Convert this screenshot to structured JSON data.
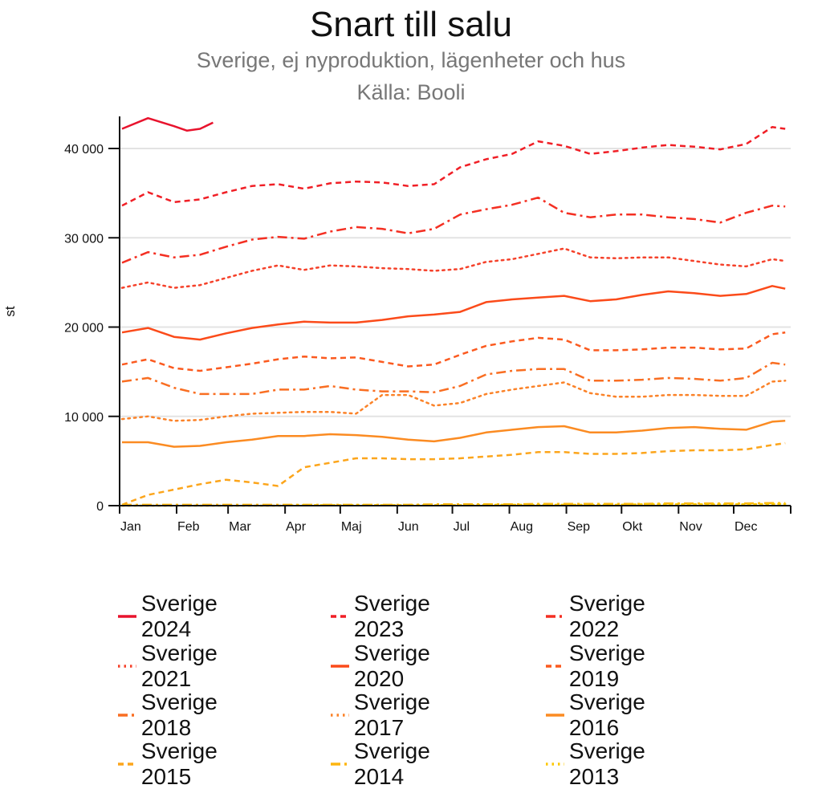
{
  "chart_data": {
    "type": "line",
    "title": "Snart till salu",
    "subtitle": "Sverige, ej nyproduktion, lägenheter och hus",
    "source": "Källa: Booli",
    "ylabel": "st",
    "xlabel": "",
    "ylim": [
      0,
      44000
    ],
    "yticks": [
      0,
      10000,
      20000,
      30000,
      40000
    ],
    "ytick_labels": [
      "0",
      "10 000",
      "20 000",
      "30 000",
      "40 000"
    ],
    "x_unit": "week",
    "xtick_labels": [
      "Jan",
      "Feb",
      "Mar",
      "Apr",
      "Maj",
      "Jun",
      "Jul",
      "Aug",
      "Sep",
      "Okt",
      "Nov",
      "Dec"
    ],
    "grid": "horizontal",
    "legend": "bottom",
    "x": [
      1,
      3,
      5,
      7,
      9,
      11,
      13,
      15,
      17,
      19,
      21,
      23,
      25,
      27,
      29,
      31,
      33,
      35,
      37,
      39,
      41,
      43,
      45,
      47,
      49,
      51,
      52
    ],
    "series": [
      {
        "name": "Sverige 2024",
        "color": "#e8132d",
        "style": "solid",
        "x": [
          1,
          3,
          5,
          6,
          7,
          8
        ],
        "values": [
          42200,
          43400,
          42500,
          42000,
          42200,
          42900
        ]
      },
      {
        "name": "Sverige 2023",
        "color": "#f01f26",
        "style": "dashed",
        "values": [
          33600,
          35100,
          34000,
          34300,
          35100,
          35800,
          36000,
          35500,
          36100,
          36300,
          36200,
          35800,
          36000,
          37900,
          38800,
          39400,
          40800,
          40300,
          39400,
          39700,
          40100,
          40400,
          40200,
          39900,
          40500,
          42400,
          42200
        ]
      },
      {
        "name": "Sverige 2022",
        "color": "#f42f22",
        "style": "dashdot",
        "values": [
          27200,
          28400,
          27800,
          28100,
          29000,
          29800,
          30100,
          29900,
          30700,
          31200,
          31000,
          30500,
          31000,
          32600,
          33200,
          33700,
          34500,
          32800,
          32300,
          32600,
          32600,
          32300,
          32100,
          31700,
          32800,
          33600,
          33500
        ]
      },
      {
        "name": "Sverige 2021",
        "color": "#f5412a",
        "style": "dotted",
        "values": [
          24400,
          25000,
          24400,
          24700,
          25500,
          26300,
          26900,
          26400,
          26900,
          26800,
          26600,
          26500,
          26300,
          26500,
          27300,
          27600,
          28200,
          28800,
          27800,
          27700,
          27800,
          27800,
          27400,
          27000,
          26800,
          27600,
          27400
        ]
      },
      {
        "name": "Sverige 2020",
        "color": "#fb4b1a",
        "style": "solid",
        "values": [
          19400,
          19900,
          18900,
          18600,
          19300,
          19900,
          20300,
          20600,
          20500,
          20500,
          20800,
          21200,
          21400,
          21700,
          22800,
          23100,
          23300,
          23500,
          22900,
          23100,
          23600,
          24000,
          23800,
          23500,
          23700,
          24600,
          24300
        ]
      },
      {
        "name": "Sverige 2019",
        "color": "#fb5a1f",
        "style": "dashed",
        "values": [
          15800,
          16400,
          15400,
          15100,
          15500,
          15900,
          16400,
          16700,
          16500,
          16600,
          16100,
          15600,
          15800,
          16900,
          17900,
          18400,
          18800,
          18600,
          17400,
          17400,
          17500,
          17700,
          17700,
          17500,
          17600,
          19200,
          19400
        ]
      },
      {
        "name": "Sverige 2018",
        "color": "#f96e22",
        "style": "dashdot",
        "values": [
          13900,
          14300,
          13200,
          12500,
          12500,
          12500,
          13000,
          13000,
          13400,
          13000,
          12800,
          12800,
          12700,
          13400,
          14700,
          15100,
          15300,
          15300,
          14000,
          14000,
          14100,
          14300,
          14200,
          14000,
          14300,
          16000,
          15800
        ]
      },
      {
        "name": "Sverige 2017",
        "color": "#fb8228",
        "style": "dotted",
        "values": [
          9700,
          10000,
          9500,
          9600,
          10000,
          10300,
          10400,
          10500,
          10500,
          10300,
          12400,
          12400,
          11200,
          11500,
          12500,
          13000,
          13400,
          13800,
          12600,
          12200,
          12200,
          12400,
          12400,
          12300,
          12300,
          13900,
          14000
        ]
      },
      {
        "name": "Sverige 2016",
        "color": "#fb8b22",
        "style": "solid",
        "values": [
          7100,
          7100,
          6600,
          6700,
          7100,
          7400,
          7800,
          7800,
          8000,
          7900,
          7700,
          7400,
          7200,
          7600,
          8200,
          8500,
          8800,
          8900,
          8200,
          8200,
          8400,
          8700,
          8800,
          8600,
          8500,
          9400,
          9500
        ]
      },
      {
        "name": "Sverige 2015",
        "color": "#fca51b",
        "style": "dashed",
        "values": [
          100,
          1200,
          1800,
          2400,
          2900,
          2600,
          2200,
          4300,
          4800,
          5300,
          5300,
          5200,
          5200,
          5300,
          5500,
          5700,
          6000,
          6000,
          5800,
          5800,
          5900,
          6100,
          6200,
          6200,
          6300,
          6800,
          7000
        ]
      },
      {
        "name": "Sverige 2014",
        "color": "#fdb50f",
        "style": "dashdot",
        "values": [
          100,
          100,
          100,
          100,
          100,
          100,
          100,
          100,
          100,
          100,
          100,
          100,
          150,
          150,
          150,
          150,
          200,
          200,
          200,
          200,
          200,
          250,
          250,
          250,
          250,
          300,
          300
        ]
      },
      {
        "name": "Sverige 2013",
        "color": "#fdc800",
        "style": "dotted",
        "values": [
          0,
          0,
          0,
          0,
          0,
          0,
          0,
          50,
          50,
          50,
          50,
          50,
          50,
          50,
          100,
          100,
          100,
          100,
          100,
          100,
          150,
          150,
          150,
          150,
          150,
          200,
          200
        ]
      }
    ]
  }
}
